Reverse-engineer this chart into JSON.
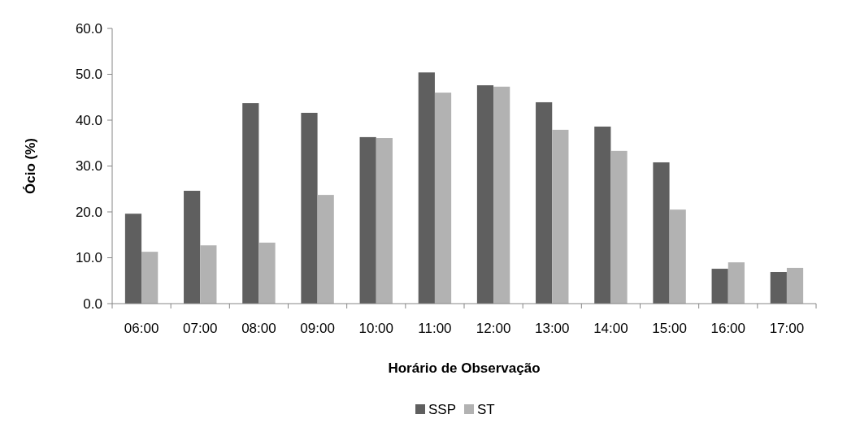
{
  "chart_data": {
    "type": "bar",
    "xlabel": "Horário de Observação",
    "ylabel": "Ócio (%)",
    "categories": [
      "06:00",
      "07:00",
      "08:00",
      "09:00",
      "10:00",
      "11:00",
      "12:00",
      "13:00",
      "14:00",
      "15:00",
      "16:00",
      "17:00"
    ],
    "series": [
      {
        "name": "SSP",
        "color": "#5f5f5f",
        "values": [
          19.6,
          24.6,
          43.7,
          41.6,
          36.3,
          50.4,
          47.6,
          43.9,
          38.6,
          30.8,
          7.6,
          6.9
        ]
      },
      {
        "name": "ST",
        "color": "#b2b2b2",
        "values": [
          11.3,
          12.7,
          13.3,
          23.7,
          36.1,
          46.0,
          47.3,
          37.9,
          33.3,
          20.5,
          9.0,
          7.8
        ]
      }
    ],
    "ylim": [
      0,
      60
    ],
    "yticks": [
      {
        "value": 0,
        "label": "0.0"
      },
      {
        "value": 10,
        "label": "10.0"
      },
      {
        "value": 20,
        "label": "20.0"
      },
      {
        "value": 30,
        "label": "30.0"
      },
      {
        "value": 40,
        "label": "40.0"
      },
      {
        "value": 50,
        "label": "50.0"
      },
      {
        "value": 60,
        "label": "60.0"
      }
    ],
    "grid": false,
    "legend": "bottom"
  }
}
